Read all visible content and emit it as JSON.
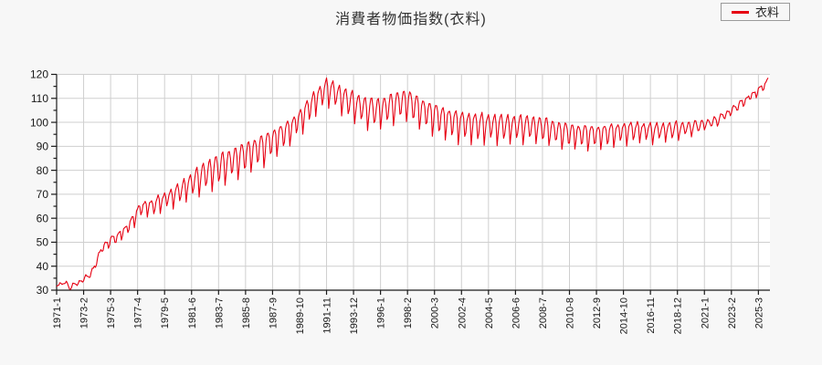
{
  "chart_data": {
    "type": "line",
    "title": "消費者物価指数(衣料)",
    "legend": "衣料",
    "line_color": "#e60012",
    "colors": {
      "grid": "#cfcfcf",
      "axis": "#1a1a1a",
      "background": "#f7f7f7",
      "plot_background": "#ffffff"
    },
    "x_start": "1971-1",
    "x_end": "2025-12",
    "x_tick_step_months": 25,
    "x_tick_labels": [
      "1971-1",
      "1973-2",
      "1975-3",
      "1977-4",
      "1979-5",
      "1981-6",
      "1983-7",
      "1985-8",
      "1987-9",
      "1989-10",
      "1991-11",
      "1993-12",
      "1996-1",
      "1998-2",
      "2000-3",
      "2002-4",
      "2004-5",
      "2006-6",
      "2008-7",
      "2010-8",
      "2012-9",
      "2014-10",
      "2016-11",
      "2018-12",
      "2021-1",
      "2023-2",
      "2025-3"
    ],
    "ylim": [
      30,
      120
    ],
    "y_tick_labels": [
      "30",
      "40",
      "50",
      "60",
      "70",
      "80",
      "90",
      "100",
      "110",
      "120"
    ],
    "y_tick_step": 10,
    "y_minor_tick_step": 5,
    "grid": true,
    "legend_position": "top-right",
    "series": [
      {
        "name": "衣料",
        "color": "#e60012",
        "frequency": "monthly",
        "monthly_model": {
          "trend_keypoints": [
            [
              1971.0,
              31.8
            ],
            [
              1971.6,
              33.2
            ],
            [
              1972.1,
              31.3
            ],
            [
              1972.8,
              33.3
            ],
            [
              1973.5,
              36.0
            ],
            [
              1973.9,
              38.5
            ],
            [
              1974.3,
              45.0
            ],
            [
              1974.8,
              49.0
            ],
            [
              1975.3,
              51.0
            ],
            [
              1975.8,
              52.5
            ],
            [
              1976.3,
              55.0
            ],
            [
              1976.8,
              58.0
            ],
            [
              1977.2,
              62.0
            ],
            [
              1977.7,
              65.0
            ],
            [
              1978.4,
              65.0
            ],
            [
              1979.0,
              67.0
            ],
            [
              1980.0,
              69.5
            ],
            [
              1981.0,
              73.0
            ],
            [
              1982.0,
              77.0
            ],
            [
              1983.0,
              80.0
            ],
            [
              1984.0,
              82.5
            ],
            [
              1985.0,
              85.0
            ],
            [
              1986.0,
              87.5
            ],
            [
              1987.0,
              90.0
            ],
            [
              1988.0,
              93.5
            ],
            [
              1989.0,
              97.0
            ],
            [
              1990.0,
              102.5
            ],
            [
              1991.0,
              109.5
            ],
            [
              1991.92,
              114.2
            ],
            [
              1992.4,
              112.8
            ],
            [
              1992.9,
              111.0
            ],
            [
              1993.9,
              108.0
            ],
            [
              1994.9,
              105.5
            ],
            [
              1995.9,
              105.0
            ],
            [
              1996.9,
              107.0
            ],
            [
              1997.9,
              108.8
            ],
            [
              1998.4,
              108.0
            ],
            [
              1998.9,
              106.0
            ],
            [
              1999.9,
              103.5
            ],
            [
              2000.9,
              101.5
            ],
            [
              2001.9,
              100.0
            ],
            [
              2002.9,
              99.3
            ],
            [
              2003.9,
              99.0
            ],
            [
              2004.9,
              98.8
            ],
            [
              2005.9,
              98.5
            ],
            [
              2006.9,
              98.5
            ],
            [
              2007.9,
              98.3
            ],
            [
              2008.9,
              97.5
            ],
            [
              2009.9,
              96.0
            ],
            [
              2010.9,
              95.3
            ],
            [
              2011.9,
              95.0
            ],
            [
              2012.9,
              95.0
            ],
            [
              2013.9,
              95.8
            ],
            [
              2014.9,
              96.5
            ],
            [
              2015.9,
              97.0
            ],
            [
              2016.9,
              96.5
            ],
            [
              2017.9,
              96.8
            ],
            [
              2018.9,
              97.2
            ],
            [
              2019.9,
              97.8
            ],
            [
              2020.9,
              99.0
            ],
            [
              2021.9,
              100.5
            ],
            [
              2022.9,
              104.0
            ],
            [
              2023.9,
              108.0
            ],
            [
              2024.9,
              112.0
            ],
            [
              2025.4,
              114.0
            ],
            [
              2025.75,
              116.0
            ],
            [
              2026.0,
              117.8
            ]
          ],
          "seasonal_offsets": [
            -2.1,
            -0.9,
            0.4,
            0.95,
            1.05,
            0.35,
            -1.3,
            -1.0,
            0.25,
            0.95,
            1.15,
            0.35
          ],
          "amplitude_keypoints": [
            [
              1971,
              0.5
            ],
            [
              1974,
              0.8
            ],
            [
              1977,
              1.8
            ],
            [
              1980,
              2.5
            ],
            [
              1983,
              4.5
            ],
            [
              1987,
              4.3
            ],
            [
              1989,
              3.3
            ],
            [
              1992,
              3.5
            ],
            [
              1995,
              4.2
            ],
            [
              2001,
              4.2
            ],
            [
              2005,
              3.8
            ],
            [
              2010,
              3.5
            ],
            [
              2013,
              3.1
            ],
            [
              2016,
              2.6
            ],
            [
              2019,
              2.4
            ],
            [
              2021,
              1.5
            ],
            [
              2023,
              1.1
            ],
            [
              2026,
              0.9
            ]
          ]
        },
        "notable_values": {
          "1971-1": 31,
          "1974-12": 50,
          "1980-1": 65,
          "1985-1": 75,
          "1991-11": 118,
          "1997-1": 95,
          "1997-11": 113,
          "2005-1": 91,
          "2005-11": 103,
          "2012-1": 89,
          "2019-1": 92,
          "2021-1": 98,
          "2023-2": 104,
          "2025-3": 113,
          "2025-12": 118
        }
      }
    ]
  }
}
